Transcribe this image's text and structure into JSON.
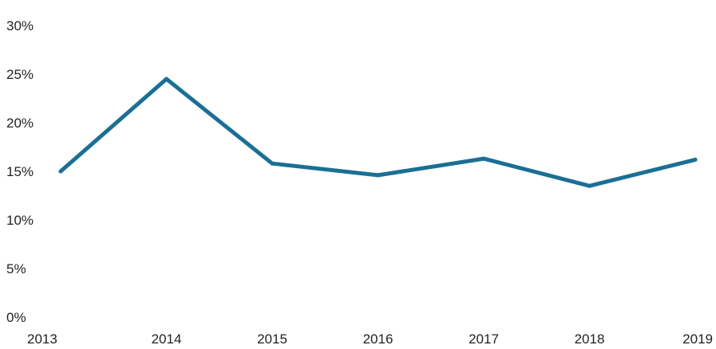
{
  "chart_data": {
    "type": "line",
    "title": "",
    "xlabel": "",
    "ylabel": "",
    "categories": [
      "2013",
      "2014",
      "2015",
      "2016",
      "2017",
      "2018",
      "2019"
    ],
    "series": [
      {
        "values": [
          15.0,
          24.5,
          15.8,
          14.6,
          16.3,
          13.5,
          16.2
        ],
        "color": "#1b6f94"
      }
    ],
    "ylim": [
      0,
      30
    ],
    "y_ticks": [
      0,
      5,
      10,
      15,
      20,
      25,
      30
    ],
    "y_tick_labels": [
      "0%",
      "5%",
      "10%",
      "15%",
      "20%",
      "25%",
      "30%"
    ],
    "grid": false,
    "legend": "none"
  }
}
